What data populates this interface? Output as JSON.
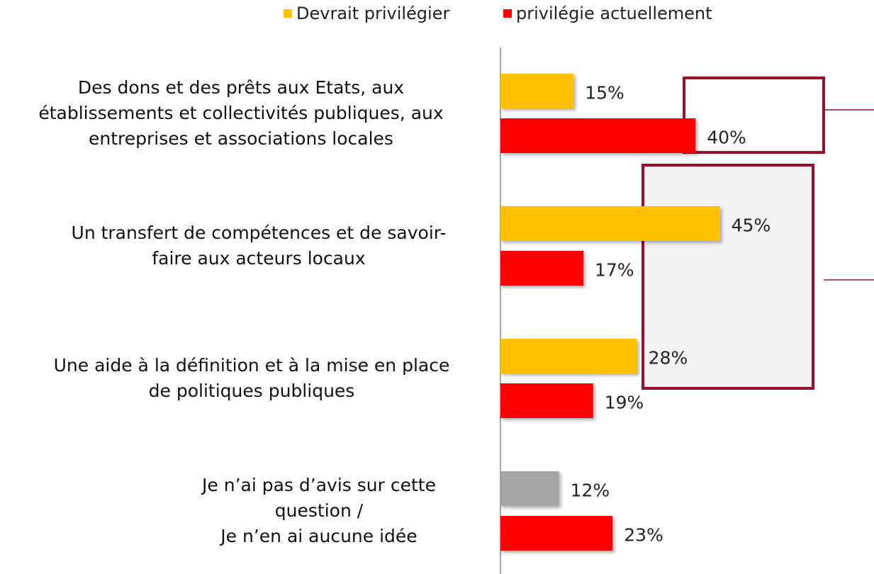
{
  "chart_data": {
    "type": "bar",
    "orientation": "horizontal",
    "categories": [
      "Des dons et des prêts aux Etats, aux\nétablissements et collectivités publiques, aux\nentreprises et associations locales",
      "Un transfert de compétences et de savoir-\nfaire aux acteurs locaux",
      "Une aide à la définition et à la mise en place\nde politiques publiques",
      "Je n’ai pas d’avis sur cette\nquestion /\nJe n’en ai aucune idée"
    ],
    "series": [
      {
        "name": "Devrait privilégier",
        "color": "#FFC000",
        "colors": [
          "#FFC000",
          "#FFC000",
          "#FFC000",
          "#A6A6A6"
        ],
        "values": [
          15,
          45,
          28,
          12
        ],
        "value_labels": [
          "15%",
          "45%",
          "28%",
          "12%"
        ]
      },
      {
        "name": "privilégie actuellement",
        "color": "#FF0000",
        "values": [
          40,
          17,
          19,
          23
        ],
        "value_labels": [
          "40%",
          "17%",
          "19%",
          "23%"
        ]
      }
    ],
    "xlim": [
      0,
      76
    ],
    "legend": "top"
  }
}
